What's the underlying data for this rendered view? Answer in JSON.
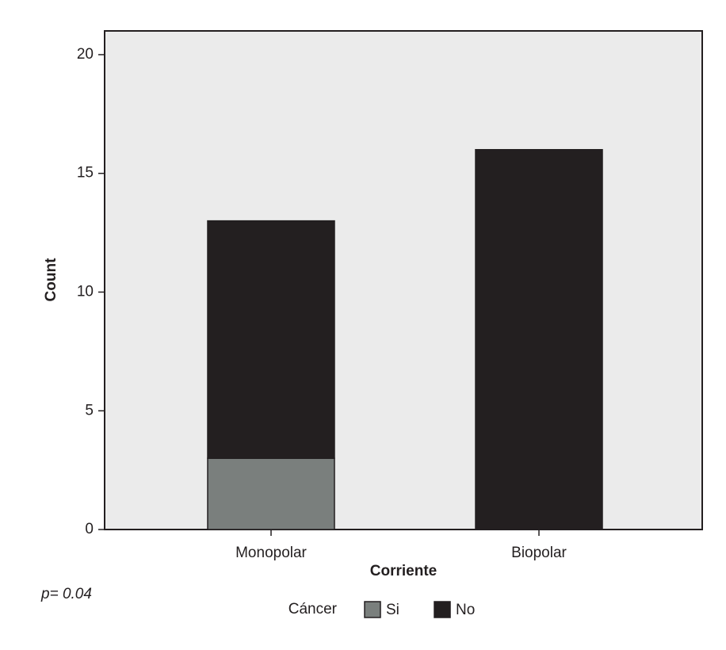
{
  "chart_data": {
    "type": "stacked_bar",
    "x_label": "Corriente",
    "y_label": "Count",
    "categories": [
      "Monopolar",
      "Biopolar"
    ],
    "series": [
      {
        "name": "Si",
        "color": "#7a7f7d",
        "values": [
          3,
          0
        ]
      },
      {
        "name": "No",
        "color": "#231f20",
        "values": [
          10,
          16
        ]
      }
    ],
    "legend_title": "Cáncer",
    "annotation": "p= 0.04",
    "ylim": [
      0,
      21
    ],
    "yticks": [
      0,
      5,
      10,
      15,
      20
    ],
    "background": "#ebebeb"
  }
}
